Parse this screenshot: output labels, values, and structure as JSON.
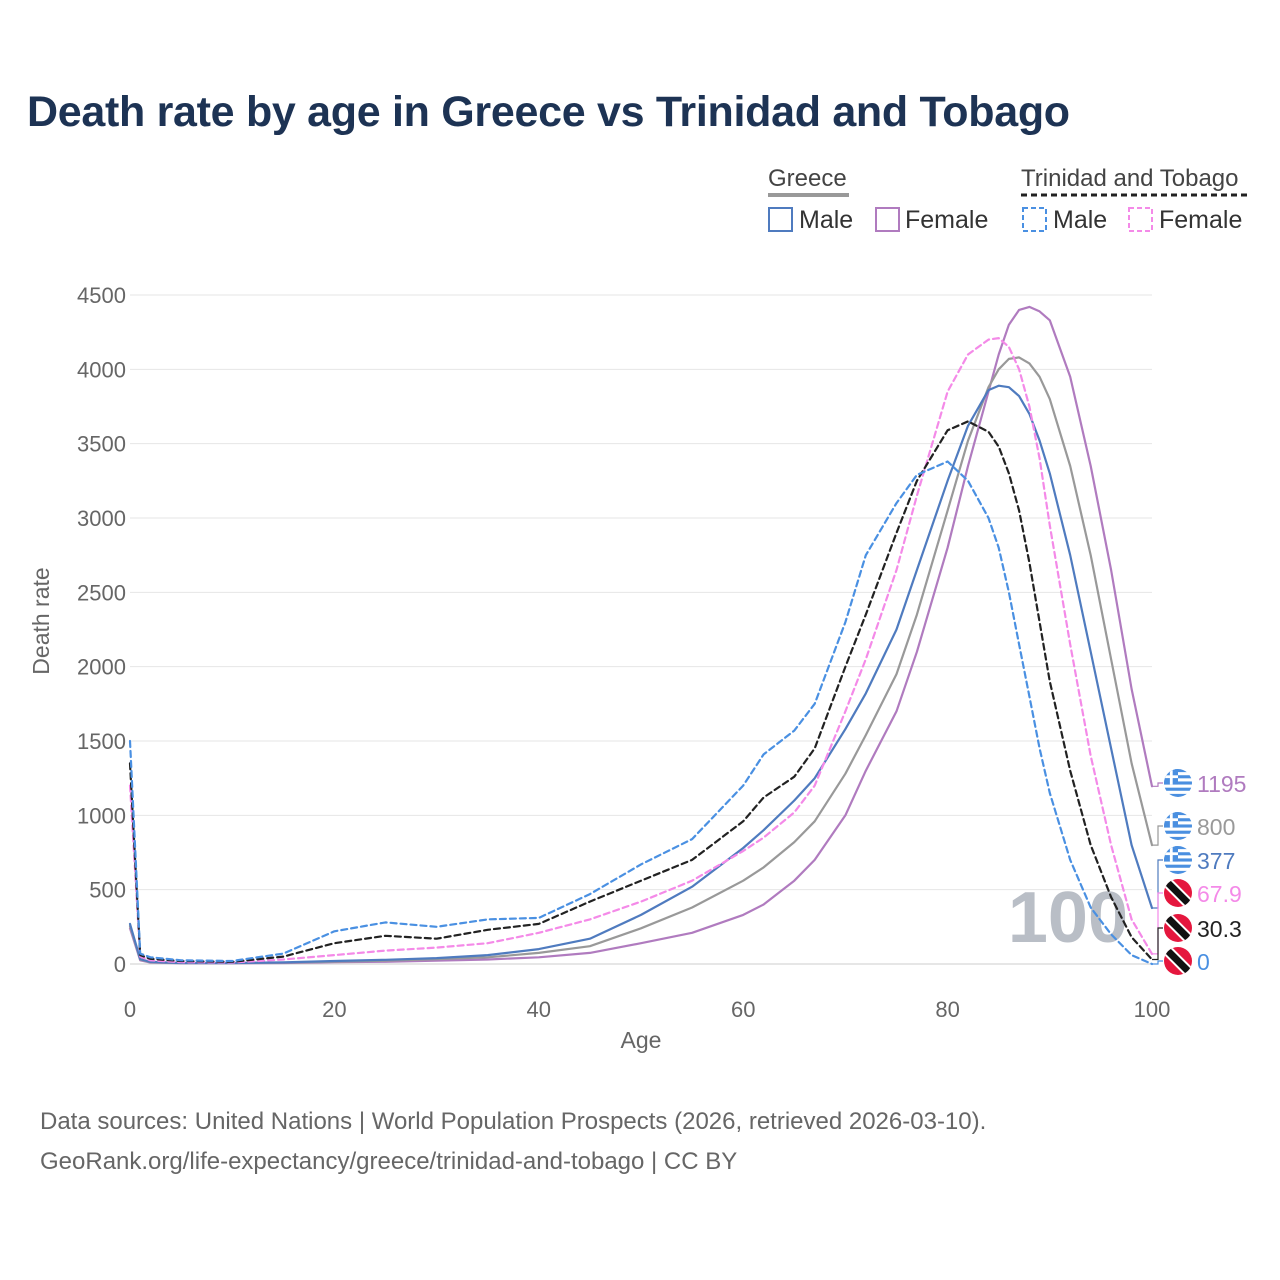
{
  "title": "Death rate by age in Greece vs Trinidad and Tobago",
  "legend": {
    "groups": [
      {
        "name": "Greece",
        "items": [
          "Male",
          "Female"
        ]
      },
      {
        "name": "Trinidad and Tobago",
        "items": [
          "Male",
          "Female"
        ]
      }
    ]
  },
  "colors": {
    "greece_male": "#4f7bbf",
    "greece_female": "#b07bbf",
    "greece_total": "#999999",
    "tt_male": "#4a90e2",
    "tt_female": "#f48ae8",
    "tt_total": "#222222",
    "grid": "#e6e6e6",
    "title": "#1d3354"
  },
  "year_watermark": "100",
  "source": {
    "line1": "Data sources: United Nations | World Population Prospects (2026, retrieved 2026-03-10).",
    "line2": "GeoRank.org/life-expectancy/greece/trinidad-and-tobago | CC BY"
  },
  "end_labels": [
    {
      "series": "greece_female",
      "text": "1195",
      "flag": "greece-flag-icon"
    },
    {
      "series": "greece_total",
      "text": "800",
      "flag": "greece-flag-icon"
    },
    {
      "series": "greece_male",
      "text": "377",
      "flag": "greece-flag-icon"
    },
    {
      "series": "tt_female",
      "text": "67.9",
      "flag": "trinidad-flag-icon"
    },
    {
      "series": "tt_total",
      "text": "30.3",
      "flag": "trinidad-flag-icon"
    },
    {
      "series": "tt_male",
      "text": "0",
      "flag": "trinidad-flag-icon"
    }
  ],
  "chart_data": {
    "type": "line",
    "title": "Death rate by age in Greece vs Trinidad and Tobago",
    "xlabel": "Age",
    "ylabel": "Death rate",
    "xlim": [
      0,
      100
    ],
    "ylim": [
      0,
      4500
    ],
    "xticks": [
      0,
      20,
      40,
      60,
      80,
      100
    ],
    "yticks": [
      0,
      500,
      1000,
      1500,
      2000,
      2500,
      3000,
      3500,
      4000,
      4500
    ],
    "x": [
      0,
      1,
      2,
      5,
      10,
      15,
      20,
      25,
      30,
      35,
      40,
      45,
      50,
      55,
      60,
      62,
      65,
      67,
      70,
      72,
      75,
      77,
      80,
      82,
      84,
      85,
      86,
      87,
      88,
      89,
      90,
      92,
      94,
      96,
      98,
      100
    ],
    "series": [
      {
        "name": "Greece Female",
        "country": "Greece",
        "sex": "Female",
        "key": "greece_female",
        "dashed": false,
        "values": [
          240,
          25,
          10,
          5,
          5,
          7,
          12,
          15,
          22,
          30,
          45,
          75,
          140,
          210,
          330,
          400,
          560,
          700,
          1000,
          1300,
          1700,
          2100,
          2800,
          3350,
          3850,
          4100,
          4300,
          4400,
          4420,
          4390,
          4330,
          3950,
          3350,
          2650,
          1850,
          1195
        ]
      },
      {
        "name": "Greece",
        "country": "Greece",
        "sex": "Total",
        "key": "greece_total",
        "dashed": false,
        "values": [
          255,
          30,
          12,
          6,
          6,
          9,
          16,
          22,
          32,
          45,
          75,
          120,
          240,
          380,
          560,
          650,
          820,
          960,
          1280,
          1540,
          1950,
          2350,
          3050,
          3520,
          3880,
          4000,
          4070,
          4080,
          4040,
          3950,
          3800,
          3350,
          2750,
          2050,
          1350,
          800
        ]
      },
      {
        "name": "Greece Male",
        "country": "Greece",
        "sex": "Male",
        "key": "greece_male",
        "dashed": false,
        "values": [
          270,
          33,
          14,
          7,
          7,
          11,
          20,
          28,
          40,
          60,
          100,
          170,
          330,
          520,
          780,
          900,
          1100,
          1250,
          1580,
          1820,
          2250,
          2650,
          3250,
          3620,
          3860,
          3890,
          3880,
          3820,
          3700,
          3520,
          3300,
          2750,
          2100,
          1450,
          800,
          377
        ]
      },
      {
        "name": "Trinidad and Tobago Female",
        "country": "Trinidad and Tobago",
        "sex": "Female",
        "key": "tt_female",
        "dashed": true,
        "values": [
          1200,
          50,
          25,
          12,
          10,
          30,
          60,
          90,
          110,
          140,
          210,
          300,
          420,
          560,
          760,
          850,
          1020,
          1200,
          1700,
          2050,
          2650,
          3150,
          3850,
          4100,
          4200,
          4210,
          4150,
          4000,
          3750,
          3400,
          2950,
          2150,
          1400,
          800,
          300,
          67.9
        ]
      },
      {
        "name": "Trinidad and Tobago",
        "country": "Trinidad and Tobago",
        "sex": "Total",
        "key": "tt_total",
        "dashed": true,
        "values": [
          1350,
          60,
          35,
          20,
          15,
          50,
          140,
          190,
          170,
          230,
          270,
          420,
          560,
          700,
          960,
          1120,
          1260,
          1450,
          2000,
          2350,
          2900,
          3250,
          3590,
          3650,
          3580,
          3480,
          3300,
          3050,
          2700,
          2300,
          1900,
          1300,
          800,
          450,
          180,
          30.3
        ]
      },
      {
        "name": "Trinidad and Tobago Male",
        "country": "Trinidad and Tobago",
        "sex": "Male",
        "key": "tt_male",
        "dashed": true,
        "values": [
          1500,
          70,
          45,
          25,
          20,
          70,
          220,
          280,
          250,
          300,
          310,
          470,
          670,
          840,
          1200,
          1410,
          1570,
          1750,
          2300,
          2750,
          3100,
          3290,
          3380,
          3250,
          3000,
          2800,
          2500,
          2150,
          1800,
          1450,
          1150,
          700,
          380,
          200,
          60,
          0
        ]
      }
    ]
  }
}
